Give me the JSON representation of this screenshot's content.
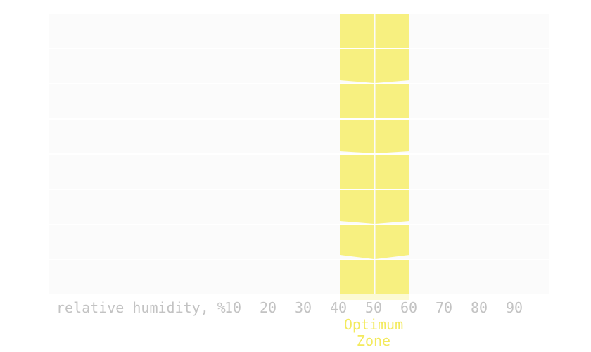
{
  "chart_data": {
    "type": "heatmap",
    "title": "",
    "xlabel": "relative humidity, %",
    "ylabel": "",
    "x_ticks": [
      10,
      20,
      30,
      40,
      50,
      60,
      70,
      80,
      90
    ],
    "xlim": [
      0,
      100
    ],
    "rows": 8,
    "highlight": {
      "label_lines": [
        "Optimum",
        "Zone"
      ],
      "range": [
        40,
        60
      ],
      "color": "#f7f080"
    },
    "grid": false
  },
  "colors": {
    "band": "#f7f080",
    "zone_text": "#f3ea5d",
    "axis_text": "#c3c3c3",
    "faint_band": "#f4f4f4"
  }
}
